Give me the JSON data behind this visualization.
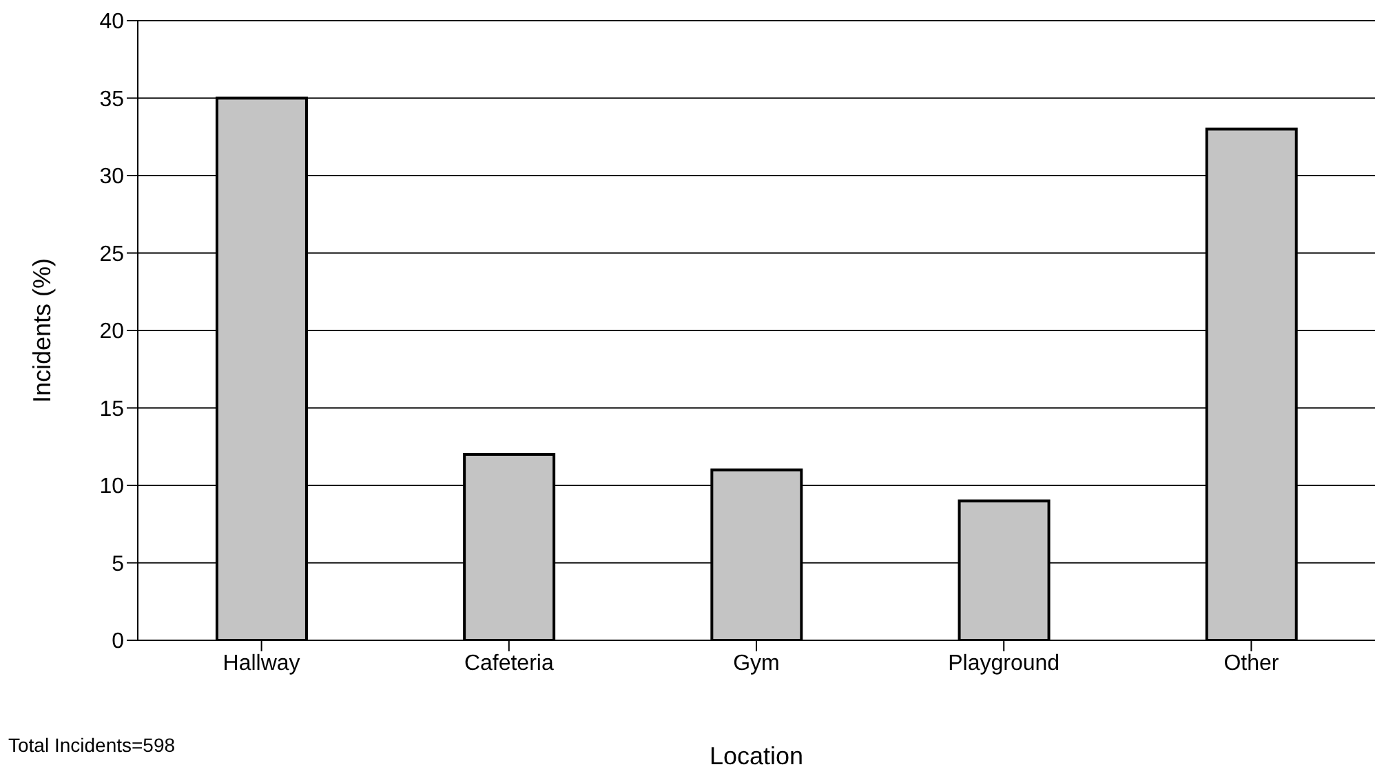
{
  "chart_data": {
    "type": "bar",
    "xlabel": "Location",
    "ylabel": "Incidents (%)",
    "categories": [
      "Hallway",
      "Cafeteria",
      "Gym",
      "Playground",
      "Other"
    ],
    "values": [
      35,
      12,
      11,
      9,
      33
    ],
    "color": "#c4c4c4",
    "ylim": [
      0,
      40
    ],
    "yticks": [
      0,
      5,
      10,
      15,
      20,
      25,
      30,
      35,
      40
    ],
    "grid": "y",
    "annotations": [
      "Total Incidents=598"
    ]
  }
}
